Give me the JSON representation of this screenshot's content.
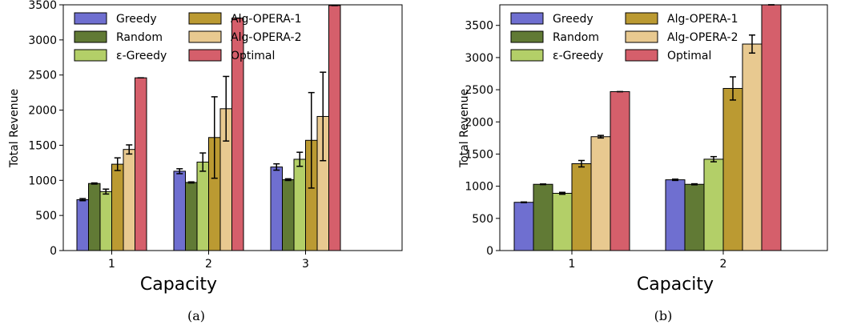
{
  "colors": {
    "Greedy": "#6f6fd0",
    "Random": "#617a35",
    "eps_greedy": "#b3cf68",
    "Alg-OPERA-1": "#bb9a32",
    "Alg-OPERA-2": "#e8c990",
    "Optimal": "#d55f6b"
  },
  "chart_data": [
    {
      "type": "bar",
      "caption": "(a)",
      "xlabel": "Capacity",
      "ylabel": "Total Revenue",
      "categories": [
        "1",
        "2",
        "3"
      ],
      "ylim": [
        0,
        3500
      ],
      "yticks": [
        0,
        500,
        1000,
        1500,
        2000,
        2500,
        3000,
        3500
      ],
      "legend": "upper-left",
      "series": [
        {
          "name": "Greedy",
          "color_key": "Greedy",
          "values": [
            725,
            1130,
            1190
          ],
          "errors": [
            15,
            35,
            45
          ]
        },
        {
          "name": "Random",
          "color_key": "Random",
          "values": [
            955,
            970,
            1010
          ],
          "errors": [
            8,
            8,
            12
          ]
        },
        {
          "name": "ε-Greedy",
          "color_key": "eps_greedy",
          "values": [
            840,
            1260,
            1300
          ],
          "errors": [
            35,
            130,
            100
          ]
        },
        {
          "name": "Alg-OPERA-1",
          "color_key": "Alg-OPERA-1",
          "values": [
            1230,
            1610,
            1570
          ],
          "errors": [
            90,
            580,
            680
          ]
        },
        {
          "name": "Alg-OPERA-2",
          "color_key": "Alg-OPERA-2",
          "values": [
            1440,
            2020,
            1910
          ],
          "errors": [
            65,
            460,
            630
          ]
        },
        {
          "name": "Optimal",
          "color_key": "Optimal",
          "values": [
            2460,
            3310,
            3490
          ],
          "errors": [
            0,
            0,
            0
          ]
        }
      ]
    },
    {
      "type": "bar",
      "caption": "(b)",
      "xlabel": "Capacity",
      "ylabel": "Total Revenue",
      "categories": [
        "1",
        "2"
      ],
      "ylim": [
        0,
        3820
      ],
      "yticks": [
        0,
        500,
        1000,
        1500,
        2000,
        2500,
        3000,
        3500
      ],
      "legend": "upper-left",
      "series": [
        {
          "name": "Greedy",
          "color_key": "Greedy",
          "values": [
            750,
            1100
          ],
          "errors": [
            5,
            10
          ]
        },
        {
          "name": "Random",
          "color_key": "Random",
          "values": [
            1030,
            1030
          ],
          "errors": [
            5,
            8
          ]
        },
        {
          "name": "ε-Greedy",
          "color_key": "eps_greedy",
          "values": [
            890,
            1420
          ],
          "errors": [
            15,
            40
          ]
        },
        {
          "name": "Alg-OPERA-1",
          "color_key": "Alg-OPERA-1",
          "values": [
            1350,
            2520
          ],
          "errors": [
            50,
            180
          ]
        },
        {
          "name": "Alg-OPERA-2",
          "color_key": "Alg-OPERA-2",
          "values": [
            1770,
            3210
          ],
          "errors": [
            20,
            140
          ]
        },
        {
          "name": "Optimal",
          "color_key": "Optimal",
          "values": [
            2470,
            3820
          ],
          "errors": [
            0,
            0
          ]
        }
      ]
    }
  ]
}
